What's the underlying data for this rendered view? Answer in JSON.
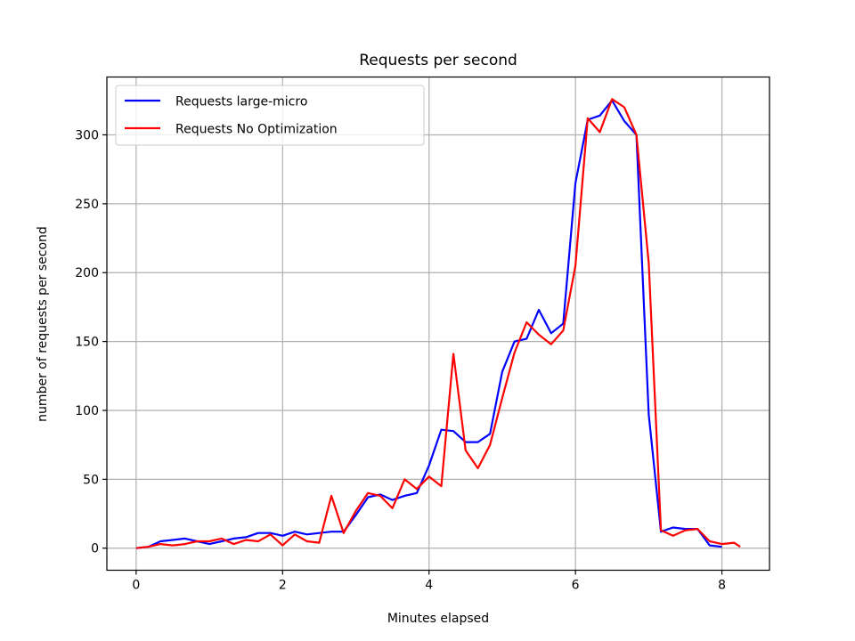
{
  "chart_data": {
    "type": "line",
    "title": "Requests per second",
    "xlabel": "Minutes elapsed",
    "ylabel": "number of requests per second",
    "xlim": [
      -0.4,
      8.65
    ],
    "ylim": [
      -16,
      342
    ],
    "xticks": [
      0,
      2,
      4,
      6,
      8
    ],
    "yticks": [
      0,
      50,
      100,
      150,
      200,
      250,
      300
    ],
    "grid": true,
    "legend_position": "top-left",
    "series": [
      {
        "name": "Requests large-micro",
        "color": "#0000ff",
        "x": [
          0,
          0.167,
          0.333,
          0.5,
          0.667,
          0.833,
          1.0,
          1.167,
          1.333,
          1.5,
          1.667,
          1.833,
          2.0,
          2.167,
          2.333,
          2.5,
          2.667,
          2.833,
          3.0,
          3.167,
          3.333,
          3.5,
          3.667,
          3.833,
          4.0,
          4.167,
          4.333,
          4.5,
          4.667,
          4.833,
          5.0,
          5.167,
          5.333,
          5.5,
          5.667,
          5.833,
          6.0,
          6.167,
          6.333,
          6.5,
          6.667,
          6.833,
          7.0,
          7.167,
          7.333,
          7.5,
          7.667,
          7.833,
          8.0
        ],
        "y": [
          0,
          1,
          5,
          6,
          7,
          5,
          3,
          5,
          7,
          8,
          11,
          11,
          9,
          12,
          10,
          11,
          12,
          12,
          24,
          37,
          39,
          35,
          38,
          40,
          60,
          86,
          85,
          77,
          77,
          83,
          128,
          150,
          152,
          173,
          156,
          163,
          265,
          311,
          314,
          325,
          310,
          300,
          97,
          12,
          15,
          14,
          14,
          2,
          1
        ]
      },
      {
        "name": "Requests No Optimization",
        "color": "#ff0000",
        "x": [
          0,
          0.167,
          0.333,
          0.5,
          0.667,
          0.833,
          1.0,
          1.167,
          1.333,
          1.5,
          1.667,
          1.833,
          2.0,
          2.167,
          2.333,
          2.5,
          2.667,
          2.833,
          3.0,
          3.167,
          3.333,
          3.5,
          3.667,
          3.833,
          4.0,
          4.167,
          4.333,
          4.5,
          4.667,
          4.833,
          5.0,
          5.167,
          5.333,
          5.5,
          5.667,
          5.833,
          6.0,
          6.167,
          6.333,
          6.5,
          6.667,
          6.833,
          7.0,
          7.167,
          7.333,
          7.5,
          7.667,
          7.833,
          8.0,
          8.167,
          8.25
        ],
        "y": [
          0,
          1,
          3,
          2,
          3,
          5,
          5,
          7,
          3,
          6,
          5,
          10,
          2,
          10,
          5,
          4,
          38,
          11,
          27,
          40,
          38,
          29,
          50,
          43,
          52,
          45,
          141,
          71,
          58,
          75,
          109,
          142,
          164,
          155,
          148,
          158,
          205,
          312,
          302,
          326,
          320,
          300,
          207,
          13,
          9,
          13,
          14,
          5,
          3,
          4,
          1
        ]
      }
    ]
  }
}
